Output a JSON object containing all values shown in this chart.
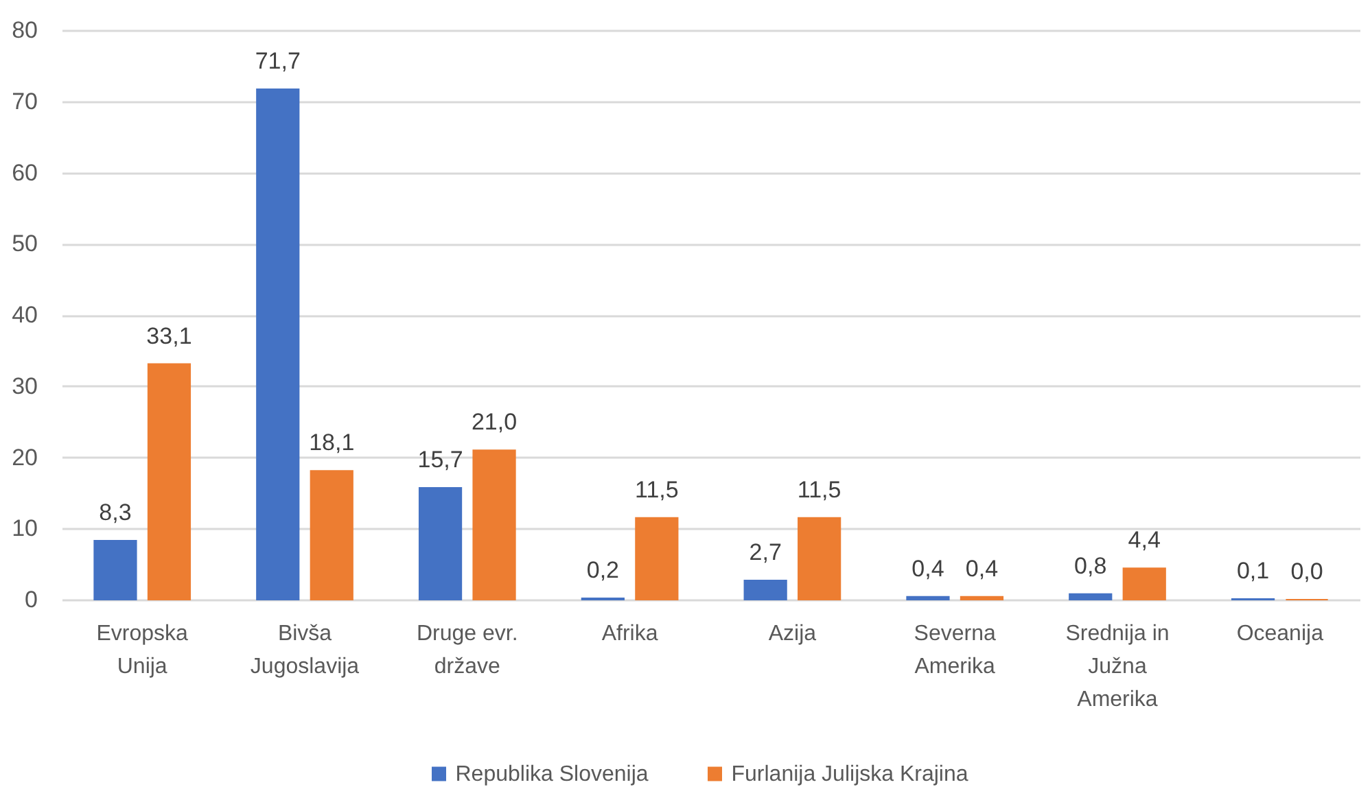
{
  "chart_data": {
    "type": "bar",
    "categories": [
      "Evropska\nUnija",
      "Bivša\nJugoslavija",
      "Druge evr.\ndržave",
      "Afrika",
      "Azija",
      "Severna\nAmerika",
      "Srednija in\nJužna\nAmerika",
      "Oceanija"
    ],
    "series": [
      {
        "name": "Republika Slovenija",
        "color": "#4472c4",
        "values": [
          8.3,
          71.7,
          15.7,
          0.2,
          2.7,
          0.4,
          0.8,
          0.1
        ],
        "value_labels": [
          "8,3",
          "71,7",
          "15,7",
          "0,2",
          "2,7",
          "0,4",
          "0,8",
          "0,1"
        ]
      },
      {
        "name": "Furlanija Julijska Krajina",
        "color": "#ed7d31",
        "values": [
          33.1,
          18.1,
          21.0,
          11.5,
          11.5,
          0.4,
          4.4,
          0.0
        ],
        "value_labels": [
          "33,1",
          "18,1",
          "21,0",
          "11,5",
          "11,5",
          "0,4",
          "4,4",
          "0,0"
        ]
      }
    ],
    "ylim": [
      0,
      80
    ],
    "yticks": [
      0,
      10,
      20,
      30,
      40,
      50,
      60,
      70,
      80
    ],
    "grid": "y",
    "legend": "bottom"
  }
}
